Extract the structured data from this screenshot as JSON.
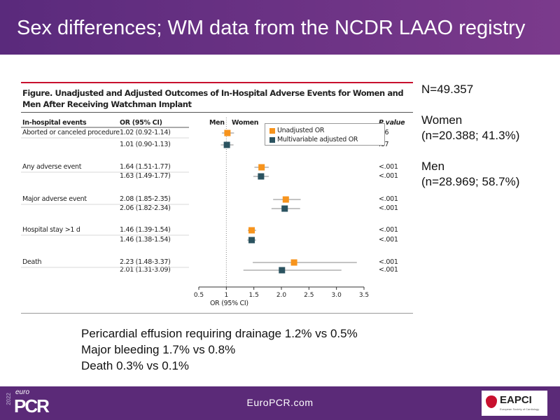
{
  "slide": {
    "title": "Sex differences; WM data from the NCDR LAAO registry"
  },
  "side": {
    "n": "N=49.357",
    "women_label": "Women",
    "women_n": "(n=20.388; 41.3%)",
    "men_label": "Men",
    "men_n": "(n=28.969; 58.7%)"
  },
  "notes": [
    "Pericardial effusion requiring drainage 1.2% vs 0.5%",
    "Major bleeding 1.7% vs 0.8%",
    "Death 0.3% vs 0.1%"
  ],
  "footer": {
    "url": "EuroPCR.com",
    "logo_text": "euro PCR 2022",
    "partner_logo_text": "EAPCI European Society of Cardiology"
  },
  "chart_data": {
    "type": "forest",
    "title": "Figure. Unadjusted and Adjusted Outcomes of In-Hospital Adverse Events for Women and Men After Receiving Watchman Implant",
    "columns": {
      "events": "In-hospital events",
      "or": "OR (95% CI)",
      "side_left": "Men",
      "side_right": "Women",
      "p": "P value"
    },
    "xlabel": "OR (95% CI)",
    "xlim": [
      0.5,
      3.5
    ],
    "xticks": [
      "0.5",
      "1",
      "1.5",
      "2.0",
      "2.5",
      "3.0",
      "3.5"
    ],
    "reference": 1,
    "legend": [
      {
        "name": "Unadjusted OR",
        "color": "#f7941d"
      },
      {
        "name": "Multivariable adjusted OR",
        "color": "#2b5360"
      }
    ],
    "rows": [
      {
        "event": "Aborted or canceled procedure",
        "unadj": {
          "or": 1.02,
          "lo": 0.92,
          "hi": 1.14,
          "text": "1.02 (0.92-1.14)",
          "p": ".66"
        },
        "adj": {
          "or": 1.01,
          "lo": 0.9,
          "hi": 1.13,
          "text": "1.01 (0.90-1.13)",
          "p": ".87"
        }
      },
      {
        "event": "Any adverse event",
        "unadj": {
          "or": 1.64,
          "lo": 1.51,
          "hi": 1.77,
          "text": "1.64 (1.51-1.77)",
          "p": "<.001"
        },
        "adj": {
          "or": 1.63,
          "lo": 1.49,
          "hi": 1.77,
          "text": "1.63 (1.49-1.77)",
          "p": "<.001"
        }
      },
      {
        "event": "Major adverse event",
        "unadj": {
          "or": 2.08,
          "lo": 1.85,
          "hi": 2.35,
          "text": "2.08 (1.85-2.35)",
          "p": "<.001"
        },
        "adj": {
          "or": 2.06,
          "lo": 1.82,
          "hi": 2.34,
          "text": "2.06 (1.82-2.34)",
          "p": "<.001"
        }
      },
      {
        "event": "Hospital stay >1 d",
        "unadj": {
          "or": 1.46,
          "lo": 1.39,
          "hi": 1.54,
          "text": "1.46 (1.39-1.54)",
          "p": "<.001"
        },
        "adj": {
          "or": 1.46,
          "lo": 1.38,
          "hi": 1.54,
          "text": "1.46 (1.38-1.54)",
          "p": "<.001"
        }
      },
      {
        "event": "Death",
        "unadj": {
          "or": 2.23,
          "lo": 1.48,
          "hi": 3.37,
          "text": "2.23 (1.48-3.37)",
          "p": "<.001"
        },
        "adj": {
          "or": 2.01,
          "lo": 1.31,
          "hi": 3.09,
          "text": "2.01 (1.31-3.09)",
          "p": "<.001"
        }
      }
    ]
  }
}
